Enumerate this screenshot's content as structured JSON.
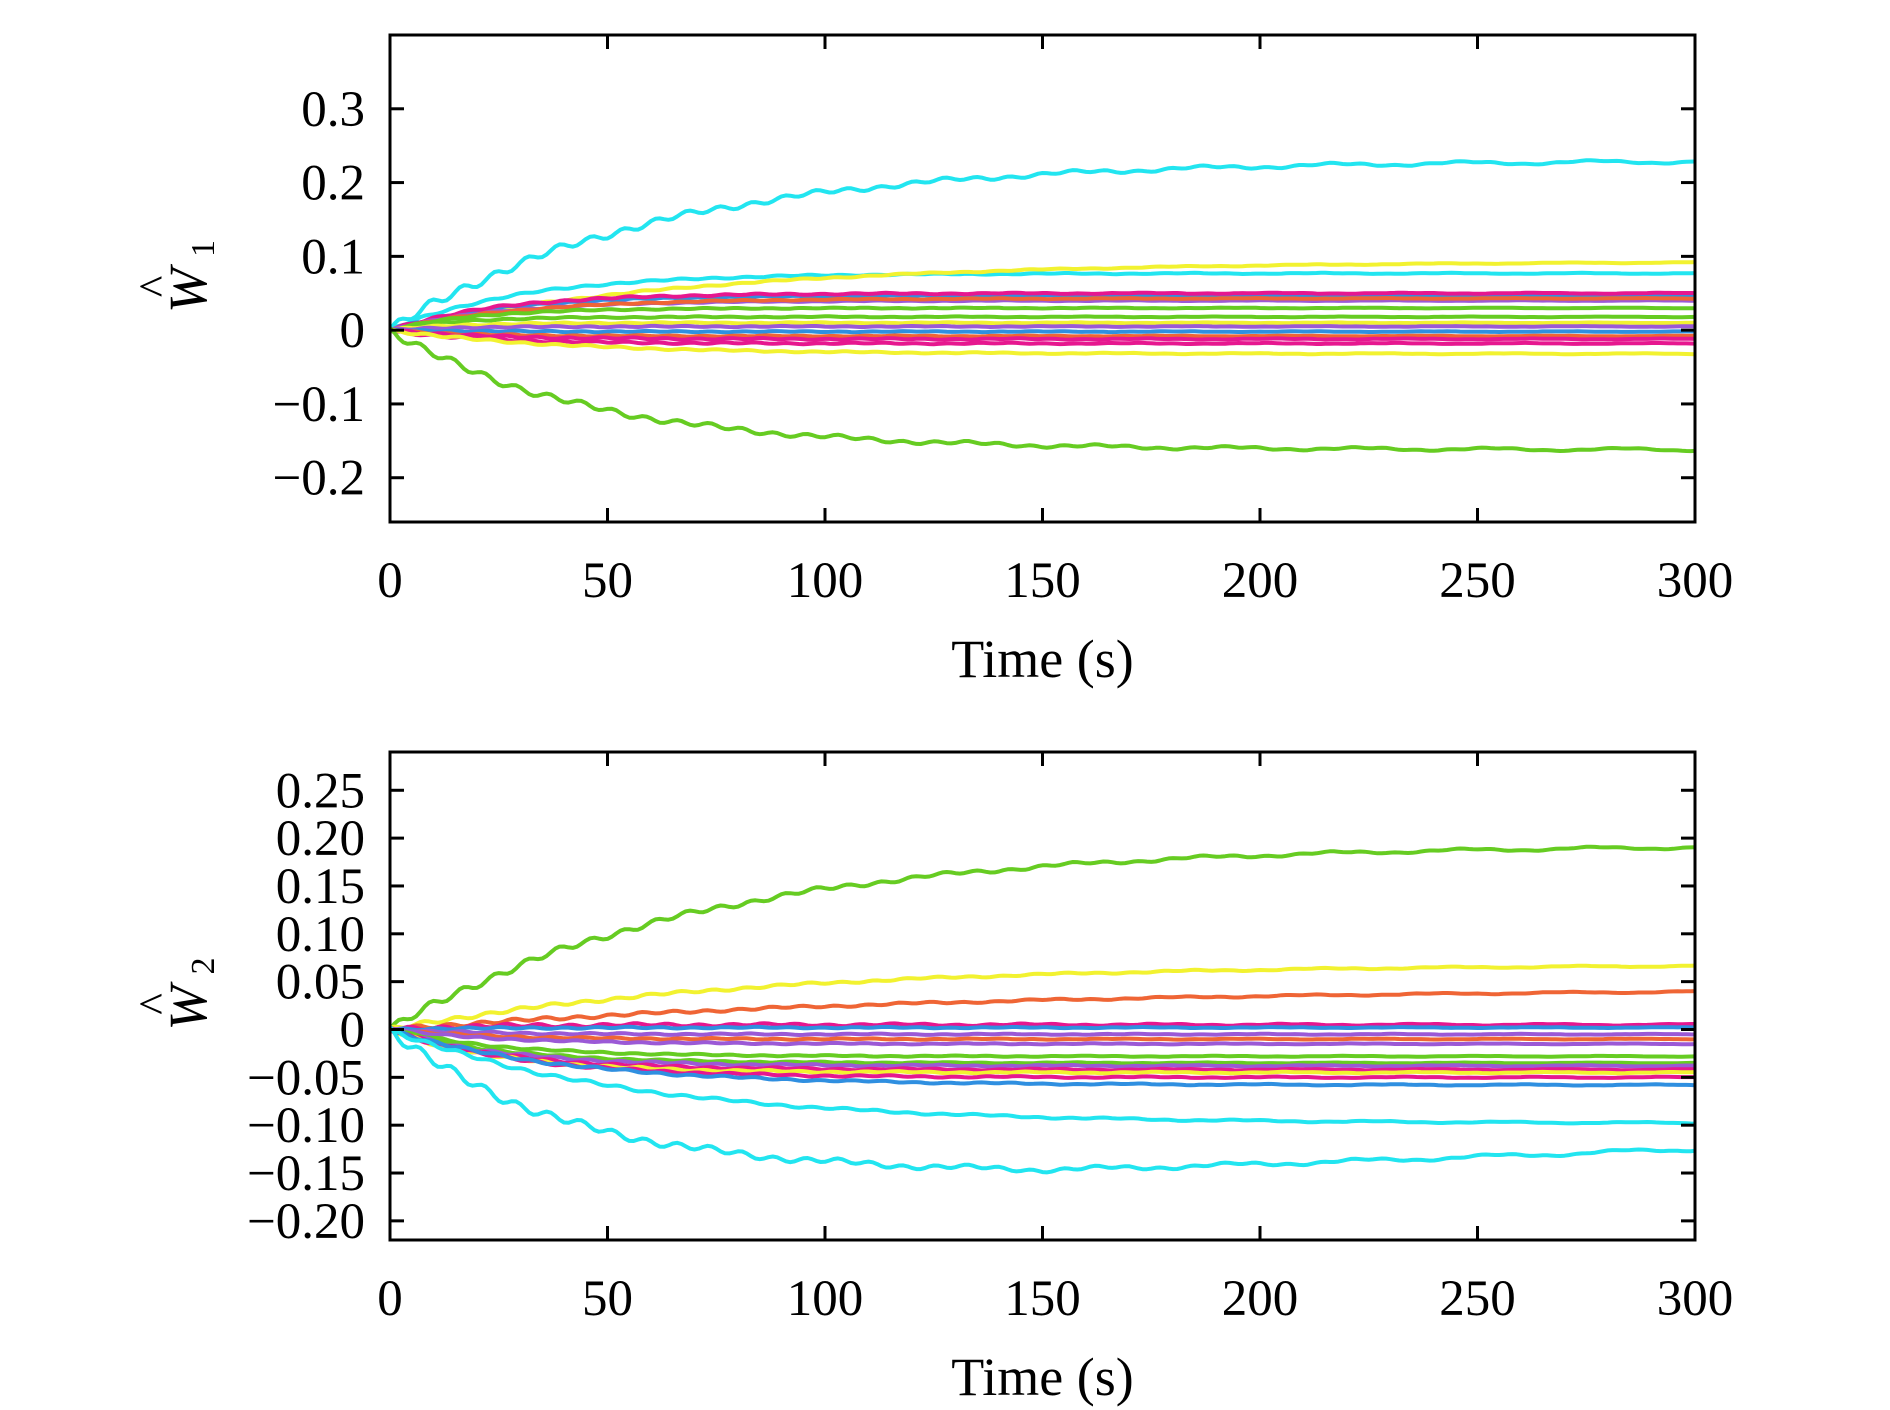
{
  "chart_data": [
    {
      "type": "line",
      "panel": "top",
      "title": "",
      "xlabel": "Time (s)",
      "ylabel": {
        "base": "W",
        "hat": "^",
        "subscript": "1"
      },
      "xlim": [
        0,
        300
      ],
      "ylim": [
        -0.26,
        0.4
      ],
      "xticks": [
        0,
        50,
        100,
        150,
        200,
        250,
        300
      ],
      "xtick_labels": [
        "0",
        "50",
        "100",
        "150",
        "200",
        "250",
        "300"
      ],
      "yticks": [
        -0.2,
        -0.1,
        0,
        0.1,
        0.2,
        0.3
      ],
      "ytick_labels": [
        "−0.2",
        "−0.1",
        "0",
        "0.1",
        "0.2",
        "0.3"
      ],
      "grid": false,
      "legend": "none",
      "series": [
        {
          "color": "#22e5f0",
          "final": 0.23,
          "osc": 0.006,
          "tau": 60
        },
        {
          "color": "#22e5f0",
          "final": 0.077,
          "osc": 0.0015,
          "tau": 30
        },
        {
          "color": "#f2f230",
          "final": 0.093,
          "osc": 0.0015,
          "tau": 70
        },
        {
          "color": "#2f8fe0",
          "final": 0.047,
          "osc": 0.0012,
          "tau": 25
        },
        {
          "color": "#e6178f",
          "final": 0.05,
          "osc": 0.0015,
          "tau": 25
        },
        {
          "color": "#9b59d6",
          "final": 0.04,
          "osc": 0.001,
          "tau": 25
        },
        {
          "color": "#ef6535",
          "final": 0.043,
          "osc": 0.001,
          "tau": 30
        },
        {
          "color": "#66cc22",
          "final": 0.03,
          "osc": 0.001,
          "tau": 20
        },
        {
          "color": "#66cc22",
          "final": 0.018,
          "osc": 0.001,
          "tau": 15
        },
        {
          "color": "#f2f230",
          "final": 0.01,
          "osc": 0.001,
          "tau": 15
        },
        {
          "color": "#9b59d6",
          "final": 0.005,
          "osc": 0.001,
          "tau": 15
        },
        {
          "color": "#2f8fe0",
          "final": -0.002,
          "osc": 0.001,
          "tau": 15
        },
        {
          "color": "#ef6535",
          "final": -0.008,
          "osc": 0.001,
          "tau": 15
        },
        {
          "color": "#e6178f",
          "final": -0.012,
          "osc": 0.0015,
          "tau": 20
        },
        {
          "color": "#e6178f",
          "final": -0.018,
          "osc": 0.0015,
          "tau": 20
        },
        {
          "color": "#f2f230",
          "final": -0.032,
          "osc": 0.0015,
          "tau": 40
        },
        {
          "color": "#66cc22",
          "final": -0.162,
          "osc": 0.005,
          "tau": 45
        }
      ]
    },
    {
      "type": "line",
      "panel": "bottom",
      "title": "",
      "xlabel": "Time (s)",
      "ylabel": {
        "base": "W",
        "hat": "^",
        "subscript": "2"
      },
      "xlim": [
        0,
        300
      ],
      "ylim": [
        -0.22,
        0.29
      ],
      "xticks": [
        0,
        50,
        100,
        150,
        200,
        250,
        300
      ],
      "xtick_labels": [
        "0",
        "50",
        "100",
        "150",
        "200",
        "250",
        "300"
      ],
      "yticks": [
        -0.2,
        -0.15,
        -0.1,
        -0.05,
        0,
        0.05,
        0.1,
        0.15,
        0.2,
        0.25
      ],
      "ytick_labels": [
        "−0.20",
        "−0.15",
        "−0.10",
        "−0.05",
        "0",
        "0.05",
        "0.10",
        "0.15",
        "0.20",
        "0.25"
      ],
      "grid": false,
      "legend": "none",
      "series": [
        {
          "color": "#66cc22",
          "final": 0.193,
          "osc": 0.004,
          "tau": 70
        },
        {
          "color": "#f2f230",
          "final": 0.068,
          "osc": 0.002,
          "tau": 80
        },
        {
          "color": "#ef6535",
          "final": 0.043,
          "osc": 0.002,
          "tau": 120
        },
        {
          "color": "#e6178f",
          "final": 0.005,
          "osc": 0.002,
          "tau": 20
        },
        {
          "color": "#2f8fe0",
          "final": 0.002,
          "osc": 0.001,
          "tau": 20
        },
        {
          "color": "#9b59d6",
          "final": -0.005,
          "osc": 0.001,
          "tau": 20
        },
        {
          "color": "#ef6535",
          "final": -0.01,
          "osc": 0.001,
          "tau": 20
        },
        {
          "color": "#9b59d6",
          "final": -0.015,
          "osc": 0.001,
          "tau": 25
        },
        {
          "color": "#66cc22",
          "final": -0.028,
          "osc": 0.001,
          "tau": 25
        },
        {
          "color": "#66cc22",
          "final": -0.035,
          "osc": 0.001,
          "tau": 25
        },
        {
          "color": "#9b59d6",
          "final": -0.038,
          "osc": 0.0015,
          "tau": 25
        },
        {
          "color": "#e6178f",
          "final": -0.042,
          "osc": 0.0015,
          "tau": 25
        },
        {
          "color": "#f2f230",
          "final": -0.045,
          "osc": 0.0015,
          "tau": 25
        },
        {
          "color": "#e6178f",
          "final": -0.05,
          "osc": 0.0015,
          "tau": 30
        },
        {
          "color": "#2f8fe0",
          "final": -0.058,
          "osc": 0.0015,
          "tau": 40
        },
        {
          "color": "#22e5f0",
          "final": -0.098,
          "osc": 0.002,
          "tau": 55
        },
        {
          "color": "#22e5f0",
          "final": -0.125,
          "osc": 0.005,
          "tau": 40,
          "plateau": -0.15
        }
      ]
    }
  ]
}
